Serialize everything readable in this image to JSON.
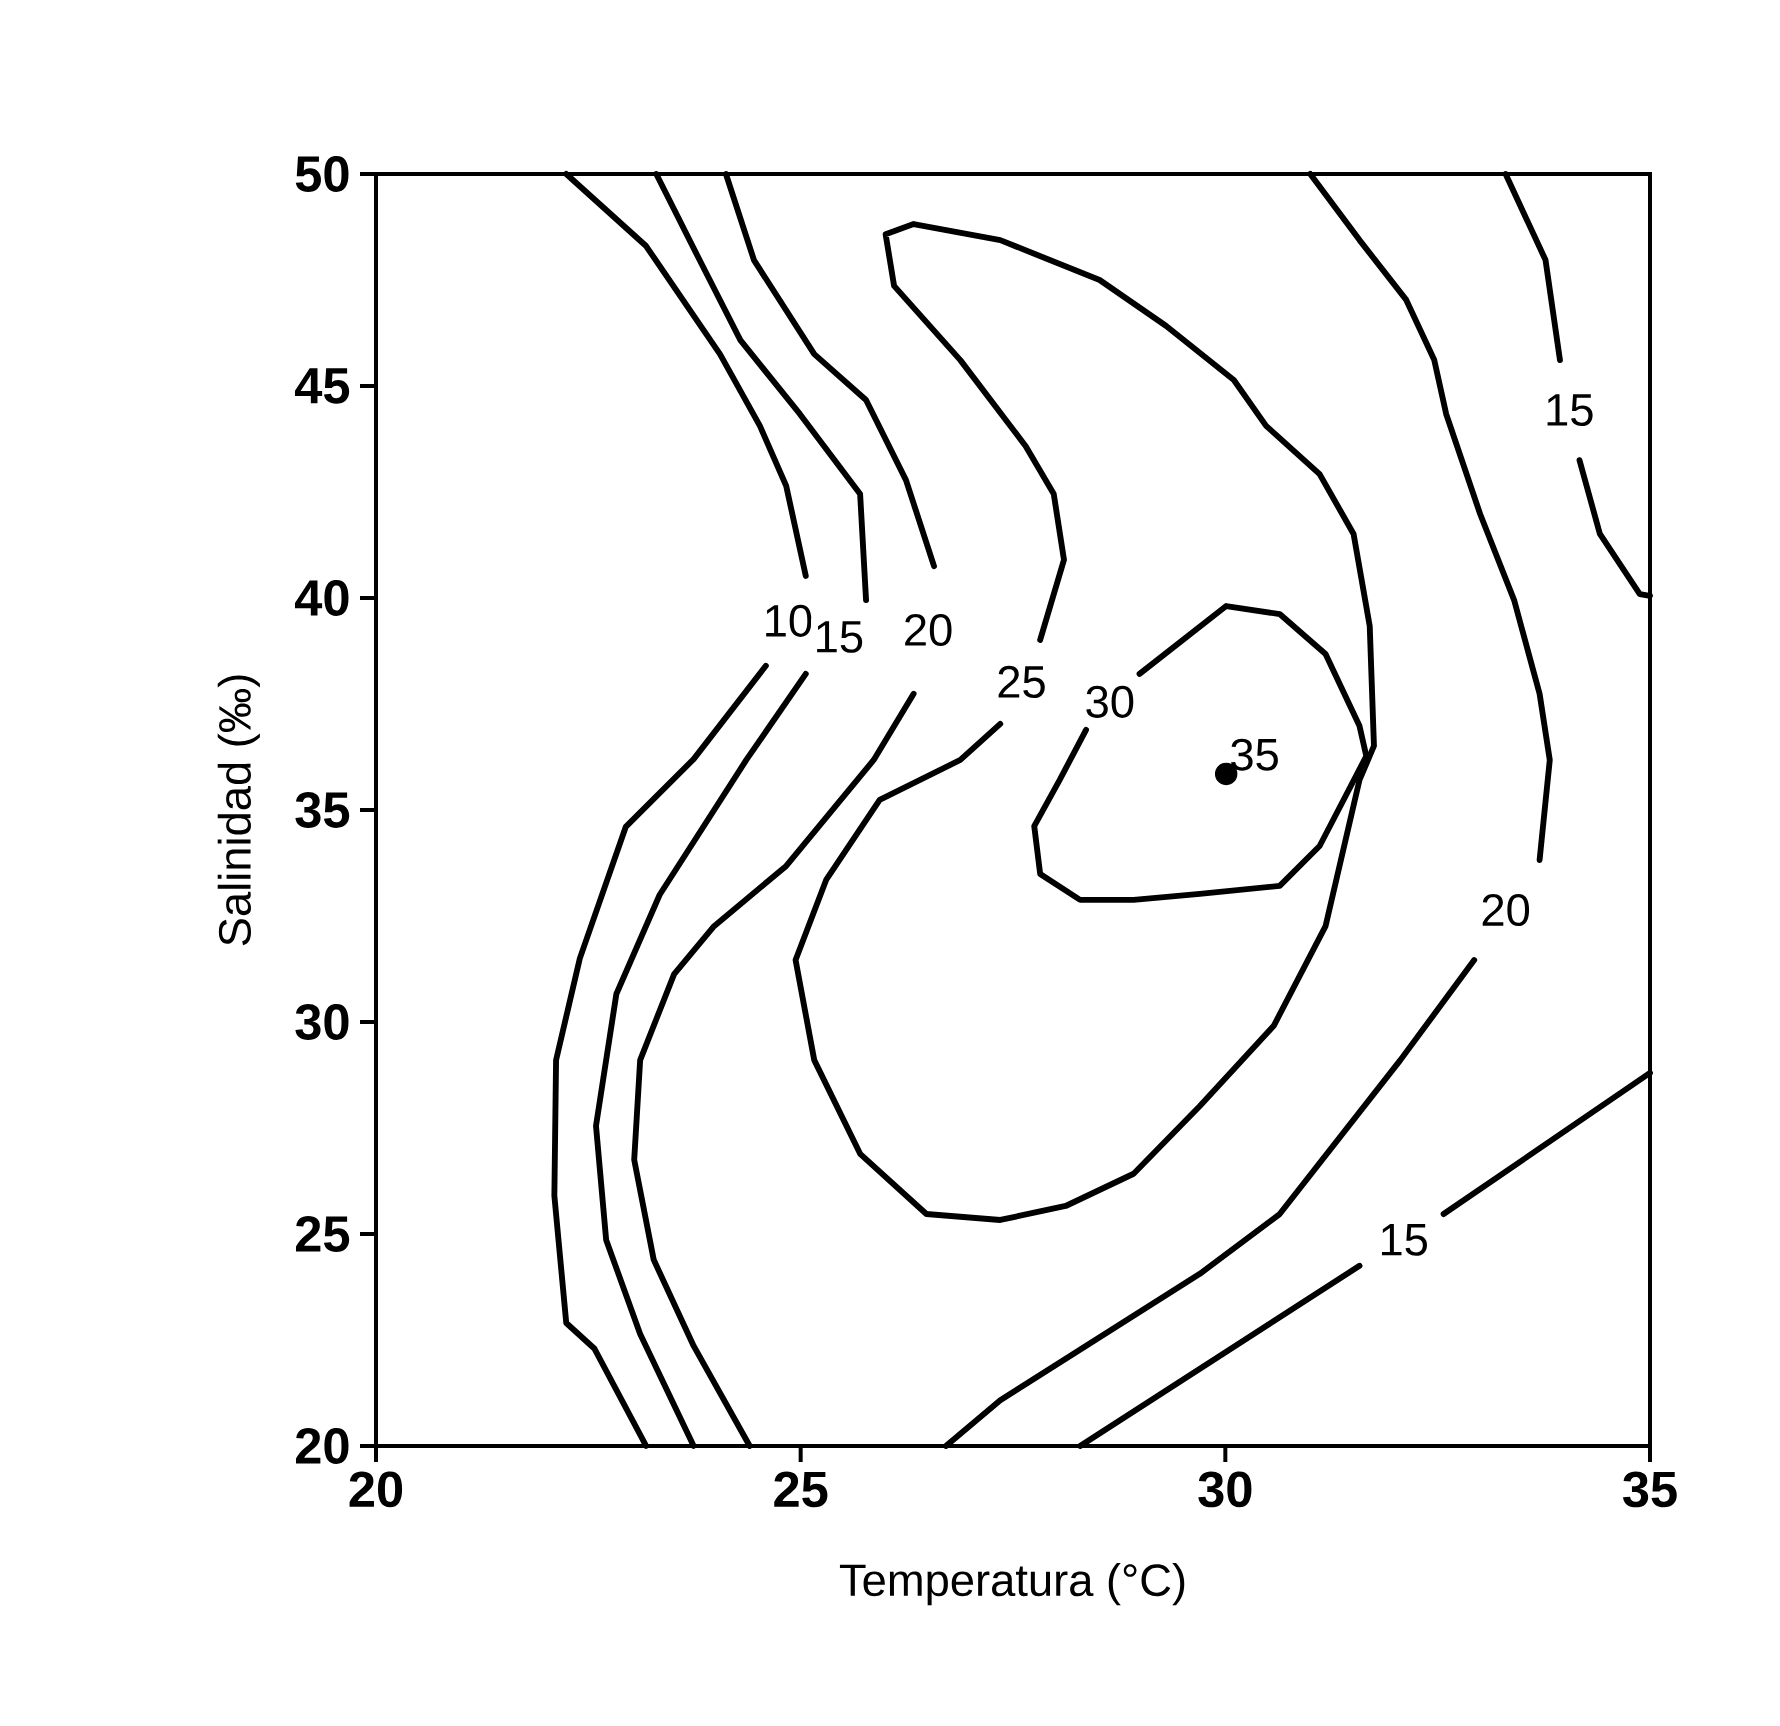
{
  "chart_data": {
    "type": "line",
    "xlabel": "Temperatura (°C)",
    "ylabel": "Salinidad (‰)",
    "xlim": [
      20,
      35
    ],
    "ylim": [
      20,
      50
    ],
    "xticks": [
      20,
      25,
      30,
      35
    ],
    "yticks": [
      20,
      25,
      30,
      35,
      40,
      45,
      50
    ],
    "series": [
      {
        "name": "10",
        "color": "#000000",
        "x": [
          22.24,
          23.18,
          24.05,
          24.52,
          24.83,
          25.06,
          24.85,
          24.59,
          23.74,
          22.94,
          22.4,
          22.12,
          22.1,
          22.24,
          22.57,
          23.18
        ],
        "values": [
          50,
          48.3,
          45.75,
          44.06,
          42.64,
          40.52,
          null,
          38.4,
          36.2,
          34.6,
          31.5,
          29.1,
          25.9,
          22.9,
          22.3,
          20
        ]
      },
      {
        "name": "15",
        "color": "#000000",
        "x": [
          23.3,
          23.81,
          24.29,
          24.99,
          25.7,
          25.77,
          25.45,
          25.06,
          24.36,
          23.34,
          22.83,
          22.59,
          22.71,
          23.11,
          23.74
        ],
        "values": [
          50,
          47.97,
          46.08,
          44.34,
          42.45,
          39.95,
          null,
          38.21,
          36.18,
          33.0,
          30.66,
          27.55,
          24.86,
          22.64,
          20
        ]
      },
      {
        "name": "20",
        "color": "#000000",
        "x": [
          24.12,
          24.45,
          25.16,
          25.77,
          26.24,
          26.57,
          26.5,
          26.33,
          25.86,
          24.83,
          23.98,
          23.51,
          23.11,
          23.04,
          23.27,
          23.74,
          24.4
        ],
        "values": [
          50,
          47.97,
          45.75,
          44.67,
          42.78,
          40.75,
          null,
          37.74,
          36.18,
          33.68,
          32.26,
          31.13,
          29.1,
          26.75,
          24.39,
          22.36,
          20
        ]
      },
      {
        "name": "25",
        "color": "#000000",
        "x": [
          27.35,
          27.6,
          27.82,
          28.1,
          27.98,
          27.65,
          26.88,
          26.1,
          26.0,
          26.33,
          27.35,
          28.52,
          29.3,
          30.1,
          30.48,
          31.11,
          31.51,
          31.7,
          31.75,
          31.58,
          31.18,
          30.57,
          29.7,
          28.92,
          28.12,
          27.35,
          26.48,
          25.7,
          25.16,
          24.94,
          25.3,
          25.93,
          26.88,
          27.35
        ],
        "values": [
          37.03,
          null,
          39.01,
          40.9,
          42.45,
          43.58,
          45.61,
          47.36,
          48.58,
          48.82,
          48.44,
          47.5,
          46.42,
          45.14,
          44.06,
          42.92,
          41.51,
          39.34,
          36.51,
          35.71,
          32.26,
          29.91,
          28.02,
          26.42,
          25.66,
          25.33,
          25.47,
          26.89,
          29.1,
          31.46,
          33.35,
          35.24,
          36.18,
          37.03
        ]
      },
      {
        "name": "30",
        "color": "#000000",
        "x": [
          28.36,
          28.64,
          28.99,
          30.01,
          30.64,
          31.18,
          31.58,
          31.66,
          31.11,
          30.64,
          29.7,
          28.92,
          28.29,
          27.82,
          27.75,
          28.05,
          28.36
        ],
        "values": [
          36.89,
          null,
          38.21,
          39.81,
          39.62,
          38.68,
          36.98,
          36.27,
          34.15,
          33.21,
          33.02,
          32.88,
          32.88,
          33.49,
          34.62,
          35.71,
          36.89
        ]
      },
      {
        "name": "20",
        "color": "#000000",
        "x": [
          31.0,
          31.58,
          32.13,
          32.46,
          32.6,
          33.0,
          33.4,
          33.7,
          33.82,
          33.7,
          33.3,
          32.93,
          32.06,
          30.64,
          29.7,
          27.35,
          26.71
        ],
        "values": [
          50,
          48.44,
          47.03,
          45.61,
          44.34,
          41.98,
          39.95,
          37.74,
          36.18,
          33.82,
          null,
          31.46,
          29.1,
          25.47,
          24.06,
          21.08,
          20
        ]
      },
      {
        "name": "15",
        "color": "#000000",
        "x": [
          33.3,
          33.77,
          33.94,
          34.05,
          34.17,
          34.41,
          34.88,
          35
        ],
        "values": [
          50,
          47.97,
          45.61,
          null,
          43.25,
          41.51,
          40.09,
          40.05
        ]
      },
      {
        "name": "15",
        "color": "#000000",
        "x": [
          28.29,
          31.58,
          32.1,
          32.57,
          35
        ],
        "values": [
          20,
          24.25,
          null,
          25.47,
          28.8
        ]
      },
      {
        "name": "35",
        "type": "scatter",
        "color": "#000000",
        "x": [
          30.01
        ],
        "values": [
          35.85
        ]
      }
    ]
  }
}
